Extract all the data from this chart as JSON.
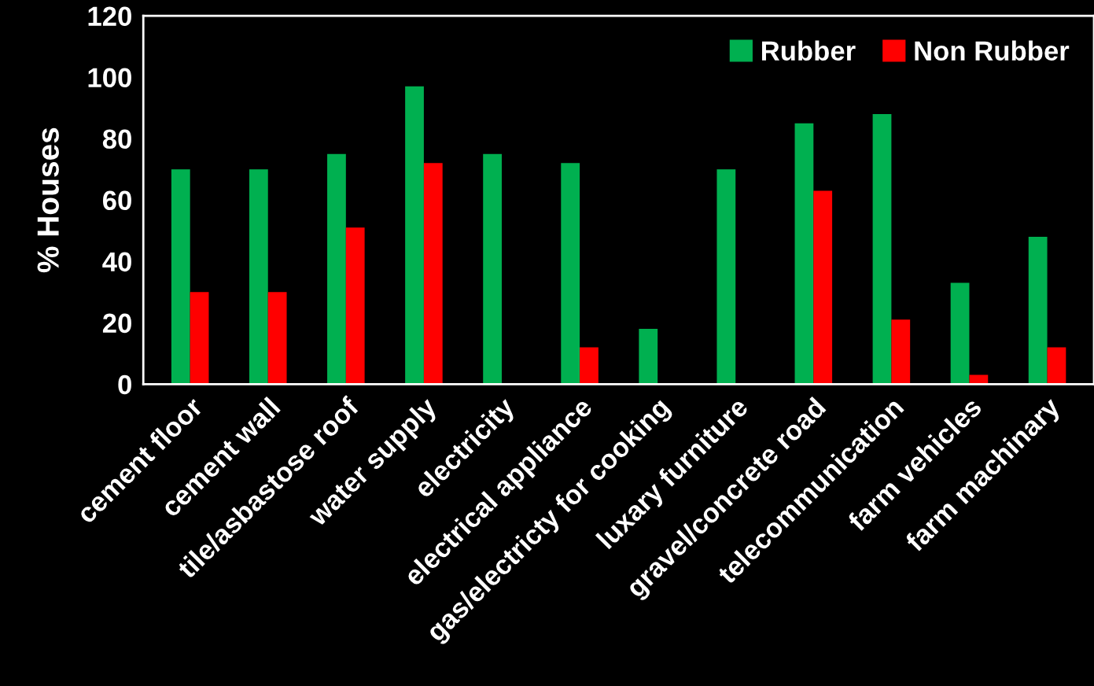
{
  "chart_data": {
    "type": "bar",
    "ylabel": "% Houses",
    "categories": [
      "cement floor",
      "cement wall",
      "tile/asbastose roof",
      "water supply",
      "electricity",
      "electrical appliance",
      "gas/electricty for cooking",
      "luxary furniture",
      "gravel/concrete road",
      "telecommunication",
      "farm vehicles",
      "farm machinary"
    ],
    "series": [
      {
        "name": "Rubber",
        "color": "#00b050",
        "values": [
          70,
          70,
          75,
          97,
          75,
          72,
          18,
          70,
          85,
          88,
          33,
          48
        ]
      },
      {
        "name": "Non Rubber",
        "color": "#ff0000",
        "values": [
          30,
          30,
          51,
          72,
          0,
          12,
          0,
          0,
          63,
          21,
          3,
          12
        ]
      }
    ],
    "ylim": [
      0,
      120
    ],
    "yticks": [
      0,
      20,
      40,
      60,
      80,
      100,
      120
    ],
    "grid": false,
    "legend": "top right"
  }
}
